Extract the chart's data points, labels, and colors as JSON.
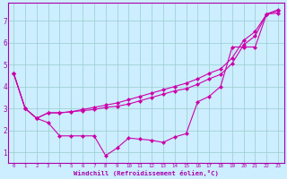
{
  "xlabel": "Windchill (Refroidissement éolien,°C)",
  "bg_color": "#cceeff",
  "line_color": "#cc00aa",
  "grid_color": "#99cccc",
  "axis_color": "#aa00aa",
  "spine_color": "#aa00aa",
  "xlim": [
    -0.5,
    23.5
  ],
  "ylim": [
    0.5,
    7.8
  ],
  "xticks": [
    0,
    1,
    2,
    3,
    4,
    5,
    6,
    7,
    8,
    9,
    10,
    11,
    12,
    13,
    14,
    15,
    16,
    17,
    18,
    19,
    20,
    21,
    22,
    23
  ],
  "yticks": [
    1,
    2,
    3,
    4,
    5,
    6,
    7
  ],
  "line1": {
    "x": [
      0,
      1,
      2,
      3,
      4,
      5,
      6,
      7,
      8,
      9,
      10,
      11,
      12,
      13,
      14,
      15,
      16,
      17,
      18,
      19,
      20,
      21,
      22,
      23
    ],
    "y": [
      4.6,
      3.0,
      2.55,
      2.35,
      1.75,
      1.75,
      1.75,
      1.75,
      0.85,
      1.2,
      1.65,
      1.6,
      1.55,
      1.45,
      1.7,
      1.85,
      3.3,
      3.55,
      4.0,
      5.8,
      5.8,
      5.8,
      7.3,
      7.35
    ]
  },
  "line2": {
    "x": [
      0,
      1,
      2,
      3,
      4,
      5,
      6,
      7,
      8,
      9,
      10,
      11,
      12,
      13,
      14,
      15,
      16,
      17,
      18,
      19,
      20,
      21,
      22,
      23
    ],
    "y": [
      4.6,
      3.0,
      2.55,
      2.8,
      2.8,
      2.85,
      2.9,
      2.95,
      3.05,
      3.1,
      3.2,
      3.35,
      3.5,
      3.65,
      3.8,
      3.9,
      4.1,
      4.35,
      4.55,
      5.05,
      5.9,
      6.3,
      7.3,
      7.45
    ]
  },
  "line3": {
    "x": [
      0,
      1,
      2,
      3,
      4,
      5,
      6,
      7,
      8,
      9,
      10,
      11,
      12,
      13,
      14,
      15,
      16,
      17,
      18,
      19,
      20,
      21,
      22,
      23
    ],
    "y": [
      4.6,
      3.0,
      2.55,
      2.8,
      2.8,
      2.85,
      2.95,
      3.05,
      3.15,
      3.25,
      3.4,
      3.55,
      3.7,
      3.85,
      4.0,
      4.15,
      4.35,
      4.6,
      4.8,
      5.3,
      6.1,
      6.5,
      7.3,
      7.5
    ]
  }
}
